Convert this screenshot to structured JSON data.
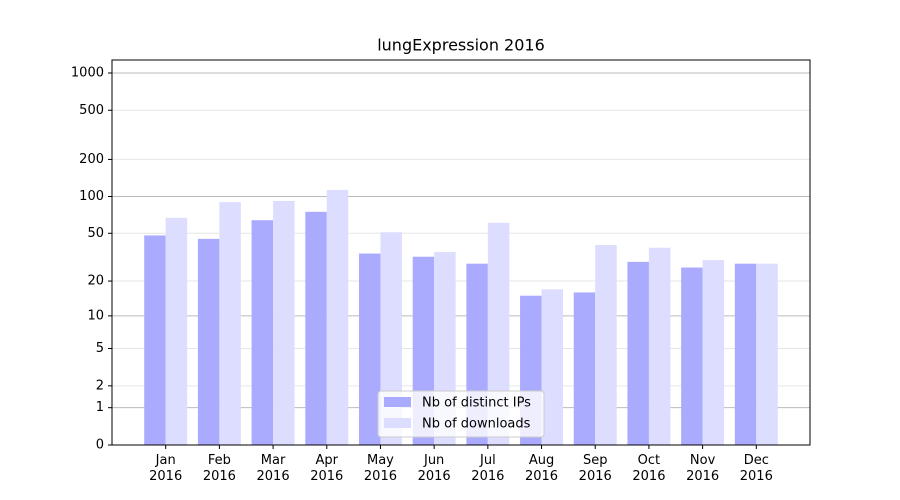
{
  "chart_data": {
    "type": "bar",
    "title": "lungExpression 2016",
    "categories": [
      "Jan\n2016",
      "Feb\n2016",
      "Mar\n2016",
      "Apr\n2016",
      "May\n2016",
      "Jun\n2016",
      "Jul\n2016",
      "Aug\n2016",
      "Sep\n2016",
      "Oct\n2016",
      "Nov\n2016",
      "Dec\n2016"
    ],
    "series": [
      {
        "name": "Nb of distinct IPs",
        "color": "#aaaaff",
        "values": [
          48,
          45,
          64,
          75,
          34,
          32,
          28,
          15,
          16,
          29,
          26,
          28
        ]
      },
      {
        "name": "Nb of downloads",
        "color": "#ddddff",
        "values": [
          67,
          90,
          92,
          113,
          51,
          35,
          61,
          17,
          40,
          38,
          30,
          28
        ]
      }
    ],
    "yscale": "log1p",
    "ylim": [
      0,
      1273
    ],
    "yticks": [
      0,
      1,
      2,
      5,
      10,
      20,
      50,
      100,
      200,
      500,
      1000
    ],
    "grid": true,
    "legend": "lower center"
  }
}
